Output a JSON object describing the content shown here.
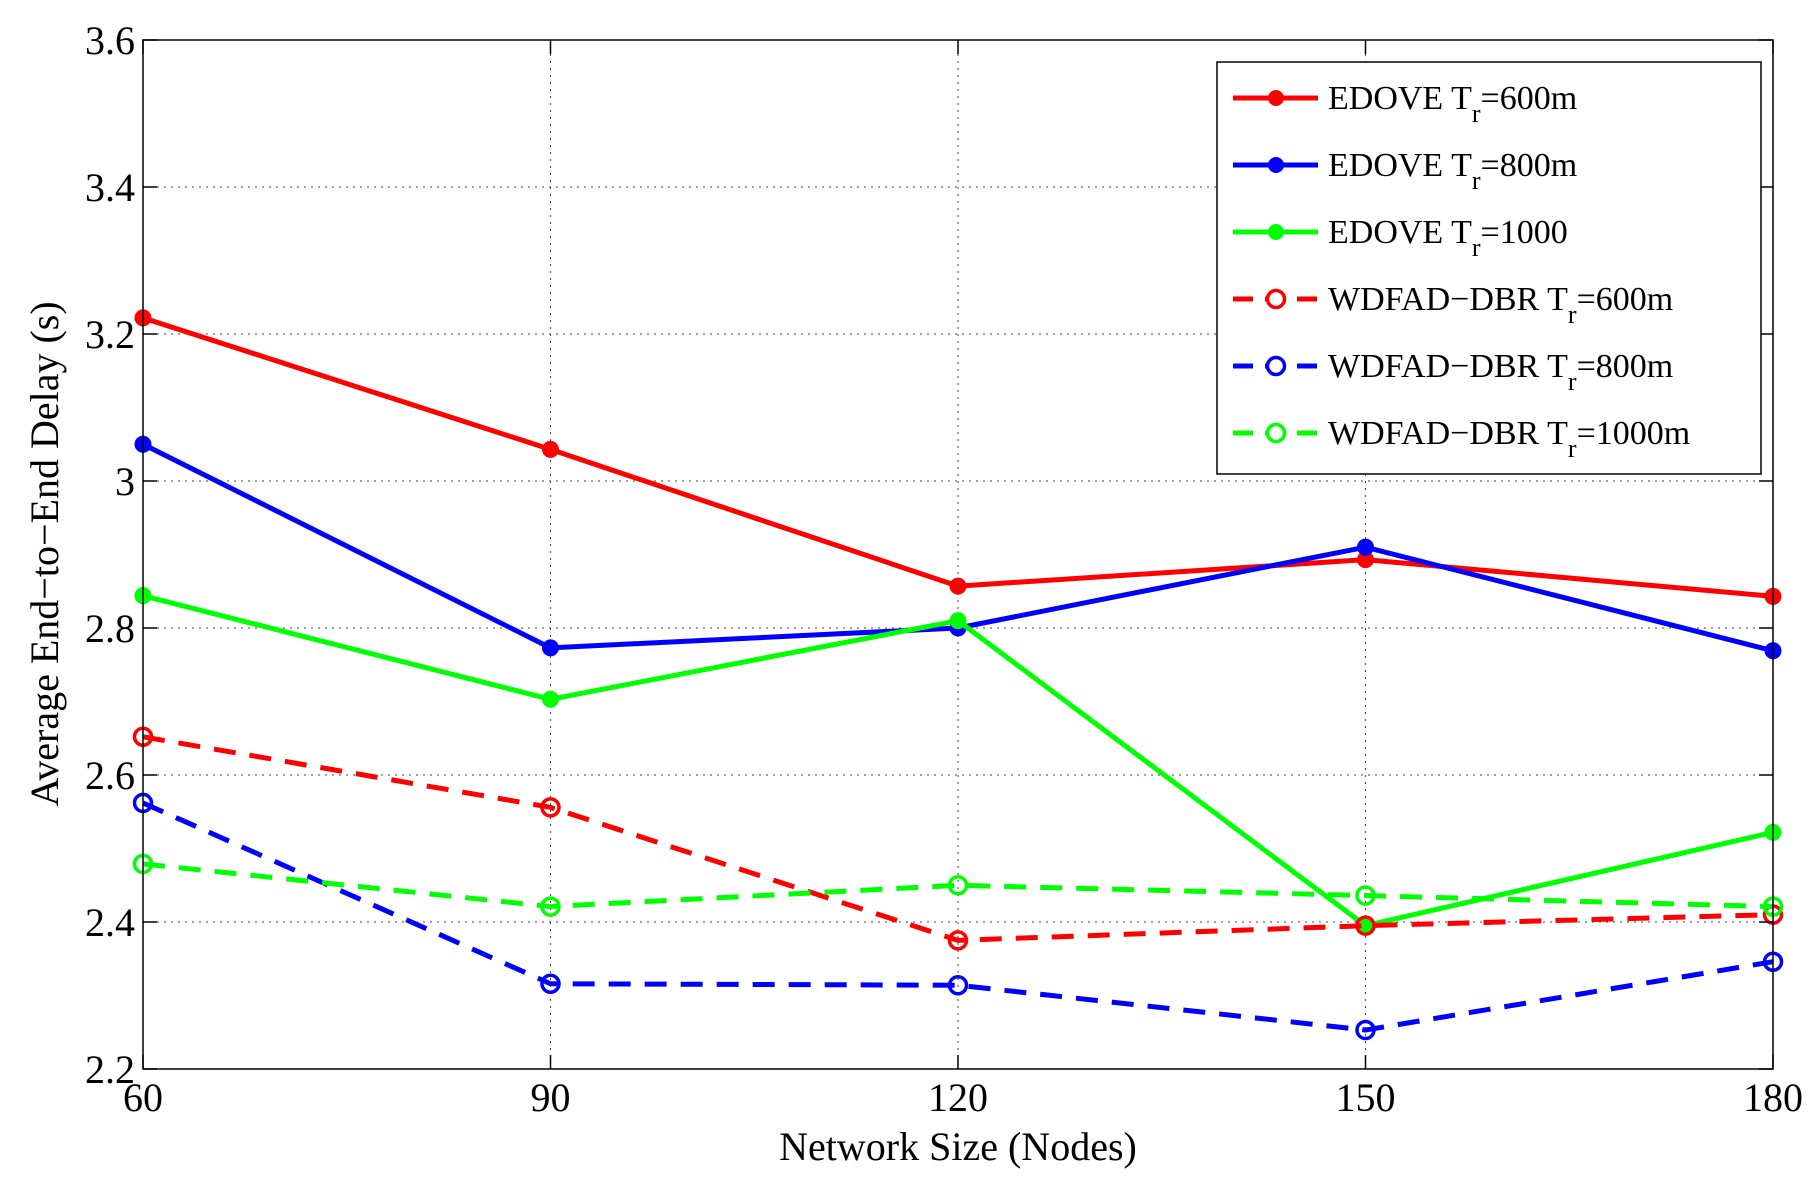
{
  "chart_data": {
    "type": "line",
    "title": "",
    "xlabel": "Network Size (Nodes)",
    "ylabel": "Average End−to−End Delay (s)",
    "x": [
      60,
      90,
      120,
      150,
      180
    ],
    "x_tick_labels": [
      "60",
      "90",
      "120",
      "150",
      "180"
    ],
    "y_tick_labels": [
      "2.2",
      "2.4",
      "2.6",
      "2.8",
      "3",
      "3.2",
      "3.4",
      "3.6"
    ],
    "xlim": [
      60,
      180
    ],
    "ylim": [
      2.2,
      3.6
    ],
    "grid": true,
    "legend_position": "top-right",
    "series": [
      {
        "name": "EDOVE Tr=600m",
        "label_pre": "EDOVE T",
        "label_sub": "r",
        "label_post": "=600m",
        "color": "#ff0000",
        "style": "solid",
        "marker": "dot",
        "values": [
          3.222,
          3.043,
          2.857,
          2.893,
          2.843
        ]
      },
      {
        "name": "EDOVE Tr=800m",
        "label_pre": "EDOVE T",
        "label_sub": "r",
        "label_post": "=800m",
        "color": "#0000ff",
        "style": "solid",
        "marker": "dot",
        "values": [
          3.05,
          2.773,
          2.8,
          2.91,
          2.769
        ]
      },
      {
        "name": "EDOVE Tr=1000",
        "label_pre": "EDOVE T",
        "label_sub": "r",
        "label_post": "=1000",
        "color": "#00ff00",
        "style": "solid",
        "marker": "dot",
        "values": [
          2.844,
          2.703,
          2.81,
          2.395,
          2.522
        ]
      },
      {
        "name": "WDFAD−DBR Tr=600m",
        "label_pre": "WDFAD−DBR T",
        "label_sub": "r",
        "label_post": "=600m",
        "color": "#ff0000",
        "style": "dashed",
        "marker": "circle",
        "values": [
          2.652,
          2.556,
          2.375,
          2.395,
          2.41
        ]
      },
      {
        "name": "WDFAD−DBR Tr=800m",
        "label_pre": "WDFAD−DBR T",
        "label_sub": "r",
        "label_post": "=800m",
        "color": "#0000ff",
        "style": "dashed",
        "marker": "circle",
        "values": [
          2.562,
          2.316,
          2.314,
          2.253,
          2.346
        ]
      },
      {
        "name": "WDFAD−DBR Tr=1000m",
        "label_pre": "WDFAD−DBR T",
        "label_sub": "r",
        "label_post": "=1000m",
        "color": "#00ff00",
        "style": "dashed",
        "marker": "circle",
        "values": [
          2.479,
          2.421,
          2.45,
          2.436,
          2.421
        ]
      }
    ]
  }
}
